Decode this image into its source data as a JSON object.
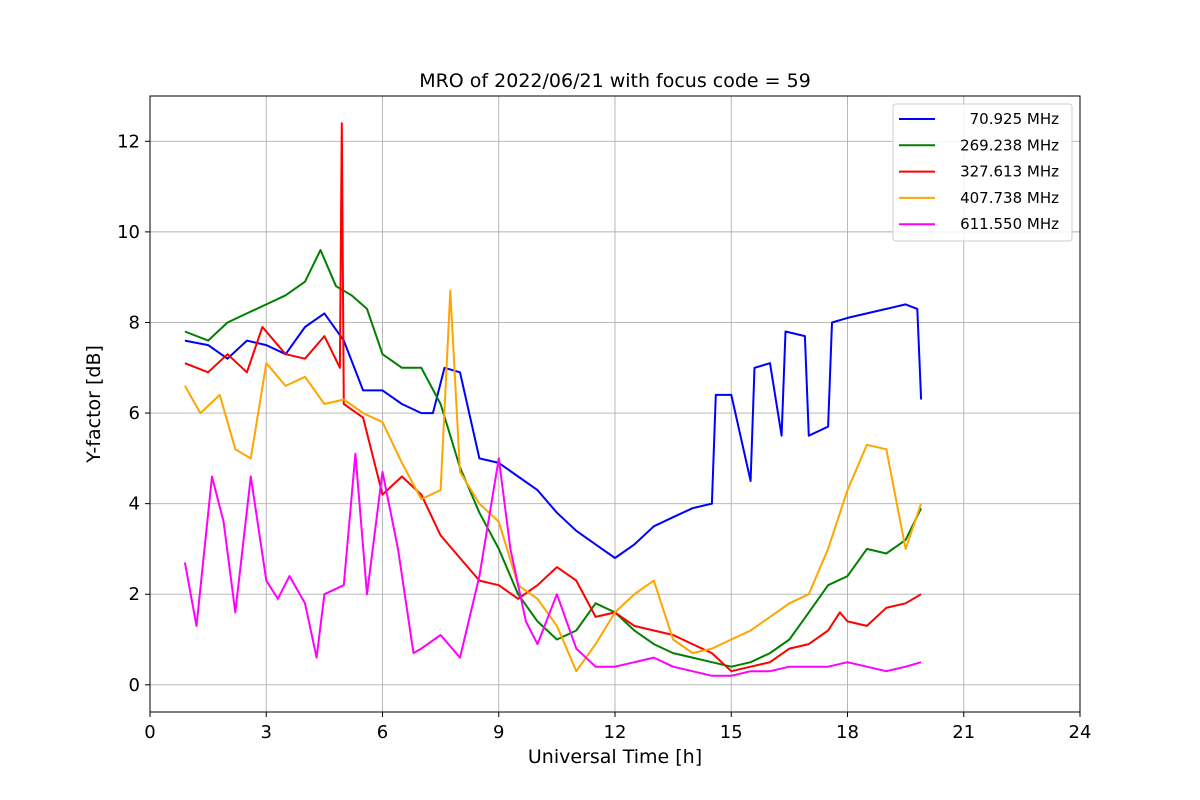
{
  "chart_data": {
    "type": "line",
    "title": "MRO of 2022/06/21 with focus code = 59",
    "xlabel": "Universal Time [h]",
    "ylabel": "Y-factor [dB]",
    "xlim": [
      0,
      24
    ],
    "ylim": [
      -0.6,
      13
    ],
    "xticks": [
      0,
      3,
      6,
      9,
      12,
      15,
      18,
      21,
      24
    ],
    "yticks": [
      0,
      2,
      4,
      6,
      8,
      10,
      12
    ],
    "grid": true,
    "legend_position": "top-right",
    "series": [
      {
        "name": "70.925 MHz",
        "color": "#0000ff",
        "x": [
          0.9,
          1.5,
          2.0,
          2.5,
          3.0,
          3.5,
          4.0,
          4.5,
          5.0,
          5.5,
          6.0,
          6.5,
          7.0,
          7.3,
          7.6,
          8.0,
          8.5,
          9.0,
          9.5,
          10.0,
          10.5,
          11.0,
          11.5,
          12.0,
          12.5,
          13.0,
          13.5,
          14.0,
          14.5,
          14.6,
          15.0,
          15.5,
          15.6,
          16.0,
          16.3,
          16.4,
          16.9,
          17.0,
          17.5,
          17.6,
          18.0,
          18.5,
          19.0,
          19.5,
          19.8,
          19.9
        ],
        "y": [
          7.6,
          7.5,
          7.2,
          7.6,
          7.5,
          7.3,
          7.9,
          8.2,
          7.6,
          6.5,
          6.5,
          6.2,
          6.0,
          6.0,
          7.0,
          6.9,
          5.0,
          4.9,
          4.6,
          4.3,
          3.8,
          3.4,
          3.1,
          2.8,
          3.1,
          3.5,
          3.7,
          3.9,
          4.0,
          6.4,
          6.4,
          4.5,
          7.0,
          7.1,
          5.5,
          7.8,
          7.7,
          5.5,
          5.7,
          8.0,
          8.1,
          8.2,
          8.3,
          8.4,
          8.3,
          6.3
        ]
      },
      {
        "name": "269.238 MHz",
        "color": "#008000",
        "x": [
          0.9,
          1.5,
          2.0,
          2.5,
          3.0,
          3.5,
          4.0,
          4.4,
          4.8,
          5.2,
          5.6,
          6.0,
          6.5,
          7.0,
          7.5,
          8.0,
          8.5,
          9.0,
          9.5,
          10.0,
          10.5,
          11.0,
          11.5,
          12.0,
          12.5,
          13.0,
          13.5,
          14.0,
          14.5,
          15.0,
          15.5,
          16.0,
          16.5,
          17.0,
          17.5,
          18.0,
          18.5,
          19.0,
          19.5,
          19.9
        ],
        "y": [
          7.8,
          7.6,
          8.0,
          8.2,
          8.4,
          8.6,
          8.9,
          9.6,
          8.8,
          8.6,
          8.3,
          7.3,
          7.0,
          7.0,
          6.2,
          4.8,
          3.8,
          3.0,
          2.0,
          1.4,
          1.0,
          1.2,
          1.8,
          1.6,
          1.2,
          0.9,
          0.7,
          0.6,
          0.5,
          0.4,
          0.5,
          0.7,
          1.0,
          1.6,
          2.2,
          2.4,
          3.0,
          2.9,
          3.2,
          3.9
        ]
      },
      {
        "name": "327.613 MHz",
        "color": "#ff0000",
        "x": [
          0.9,
          1.5,
          2.0,
          2.5,
          2.9,
          3.5,
          4.0,
          4.5,
          4.9,
          4.95,
          5.0,
          5.5,
          6.0,
          6.5,
          7.0,
          7.5,
          8.0,
          8.5,
          9.0,
          9.5,
          10.0,
          10.5,
          11.0,
          11.5,
          12.0,
          12.5,
          13.0,
          13.5,
          14.0,
          14.5,
          15.0,
          15.5,
          16.0,
          16.5,
          17.0,
          17.5,
          17.8,
          18.0,
          18.5,
          19.0,
          19.5,
          19.9
        ],
        "y": [
          7.1,
          6.9,
          7.3,
          6.9,
          7.9,
          7.3,
          7.2,
          7.7,
          7.0,
          12.4,
          6.2,
          5.9,
          4.2,
          4.6,
          4.2,
          3.3,
          2.8,
          2.3,
          2.2,
          1.9,
          2.2,
          2.6,
          2.3,
          1.5,
          1.6,
          1.3,
          1.2,
          1.1,
          0.9,
          0.7,
          0.3,
          0.4,
          0.5,
          0.8,
          0.9,
          1.2,
          1.6,
          1.4,
          1.3,
          1.7,
          1.8,
          2.0
        ]
      },
      {
        "name": "407.738 MHz",
        "color": "#ffa500",
        "x": [
          0.9,
          1.3,
          1.8,
          2.2,
          2.6,
          3.0,
          3.5,
          4.0,
          4.5,
          5.0,
          5.5,
          6.0,
          6.5,
          7.0,
          7.5,
          7.75,
          8.0,
          8.5,
          9.0,
          9.5,
          10.0,
          10.5,
          11.0,
          11.5,
          12.0,
          12.5,
          13.0,
          13.5,
          14.0,
          14.5,
          15.0,
          15.5,
          16.0,
          16.5,
          17.0,
          17.5,
          18.0,
          18.5,
          19.0,
          19.5,
          19.9
        ],
        "y": [
          6.6,
          6.0,
          6.4,
          5.2,
          5.0,
          7.1,
          6.6,
          6.8,
          6.2,
          6.3,
          6.0,
          5.8,
          4.9,
          4.1,
          4.3,
          8.7,
          4.7,
          4.0,
          3.6,
          2.2,
          1.9,
          1.3,
          0.3,
          0.9,
          1.6,
          2.0,
          2.3,
          1.0,
          0.7,
          0.8,
          1.0,
          1.2,
          1.5,
          1.8,
          2.0,
          3.0,
          4.3,
          5.3,
          5.2,
          3.0,
          4.0
        ]
      },
      {
        "name": "611.550 MHz",
        "color": "#ff00ff",
        "x": [
          0.9,
          1.2,
          1.6,
          1.9,
          2.2,
          2.6,
          3.0,
          3.3,
          3.6,
          4.0,
          4.3,
          4.5,
          5.0,
          5.3,
          5.6,
          6.0,
          6.4,
          6.8,
          7.0,
          7.5,
          8.0,
          8.5,
          9.0,
          9.3,
          9.7,
          10.0,
          10.5,
          11.0,
          11.5,
          12.0,
          12.5,
          13.0,
          13.5,
          14.0,
          14.5,
          15.0,
          15.5,
          16.0,
          16.5,
          17.0,
          17.5,
          18.0,
          18.5,
          19.0,
          19.5,
          19.9
        ],
        "y": [
          2.7,
          1.3,
          4.6,
          3.6,
          1.6,
          4.6,
          2.3,
          1.9,
          2.4,
          1.8,
          0.6,
          2.0,
          2.2,
          5.1,
          2.0,
          4.7,
          3.0,
          0.7,
          0.8,
          1.1,
          0.6,
          2.4,
          5.0,
          3.0,
          1.4,
          0.9,
          2.0,
          0.8,
          0.4,
          0.4,
          0.5,
          0.6,
          0.4,
          0.3,
          0.2,
          0.2,
          0.3,
          0.3,
          0.4,
          0.4,
          0.4,
          0.5,
          0.4,
          0.3,
          0.4,
          0.5
        ]
      }
    ]
  }
}
